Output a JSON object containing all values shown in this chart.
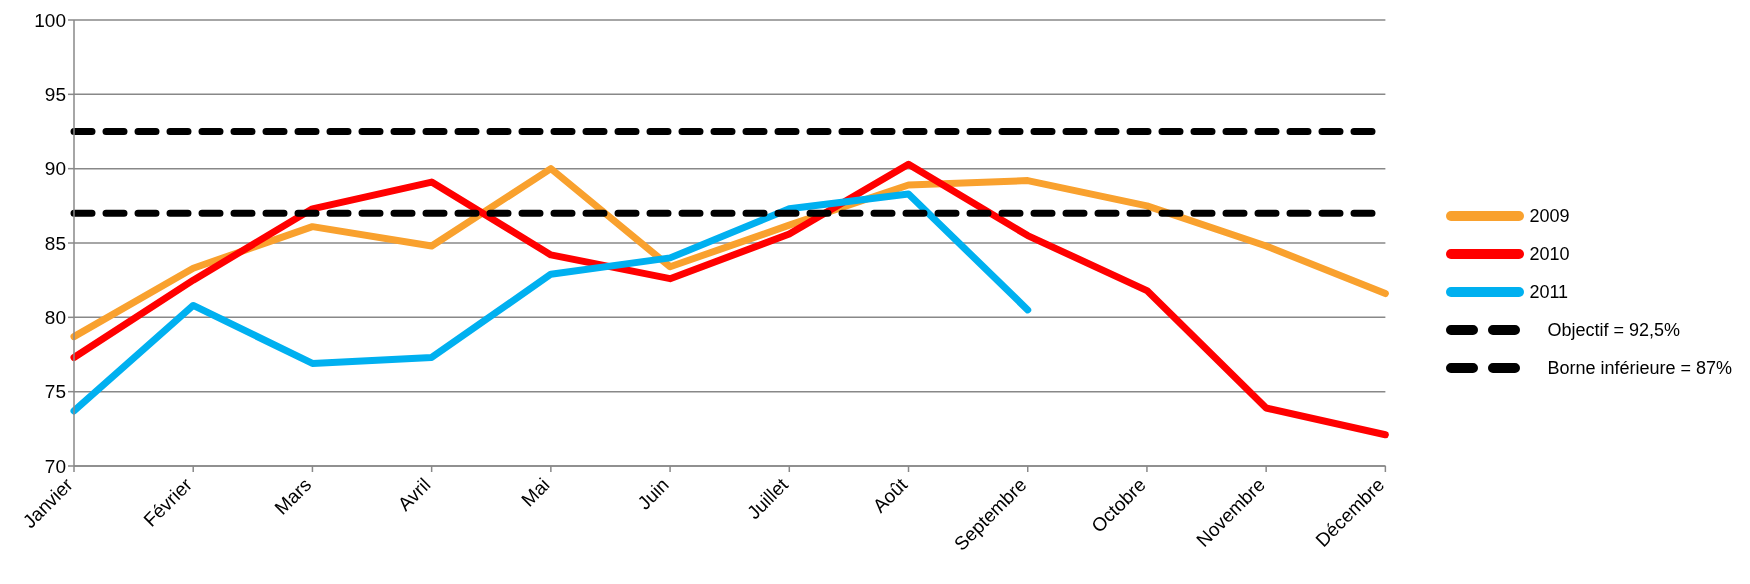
{
  "chart_data": {
    "type": "line",
    "categories": [
      "Janvier",
      "Février",
      "Mars",
      "Avril",
      "Mai",
      "Juin",
      "Juillet",
      "Août",
      "Septembre",
      "Octobre",
      "Novembre",
      "Décembre"
    ],
    "series": [
      {
        "name": "2009",
        "color": "#f9a12e",
        "values": [
          78.7,
          83.3,
          86.1,
          84.8,
          90.0,
          83.4,
          86.2,
          88.9,
          89.2,
          87.5,
          84.8,
          81.6
        ]
      },
      {
        "name": "2010",
        "color": "#ff0000",
        "values": [
          77.3,
          82.5,
          87.3,
          89.1,
          84.2,
          82.6,
          85.6,
          90.3,
          85.5,
          81.8,
          73.9,
          72.1
        ]
      },
      {
        "name": "2011",
        "color": "#00b0f0",
        "values": [
          73.7,
          80.8,
          76.9,
          77.3,
          82.9,
          84.0,
          87.3,
          88.3,
          80.5,
          null,
          null,
          null
        ]
      },
      {
        "name": "Objectif = 92,5%",
        "color": "#000000",
        "line_style": "dashed",
        "values": [
          92.5,
          92.5,
          92.5,
          92.5,
          92.5,
          92.5,
          92.5,
          92.5,
          92.5,
          92.5,
          92.5,
          92.5
        ]
      },
      {
        "name": "Borne inférieure = 87%",
        "color": "#000000",
        "line_style": "dashed",
        "values": [
          87,
          87,
          87,
          87,
          87,
          87,
          87,
          87,
          87,
          87,
          87,
          87
        ]
      }
    ],
    "ylim": [
      70,
      100
    ],
    "yticks": [
      70,
      75,
      80,
      85,
      90,
      95,
      100
    ],
    "grid": "y",
    "legend": "right",
    "marker": "none",
    "line_style": "solid"
  }
}
